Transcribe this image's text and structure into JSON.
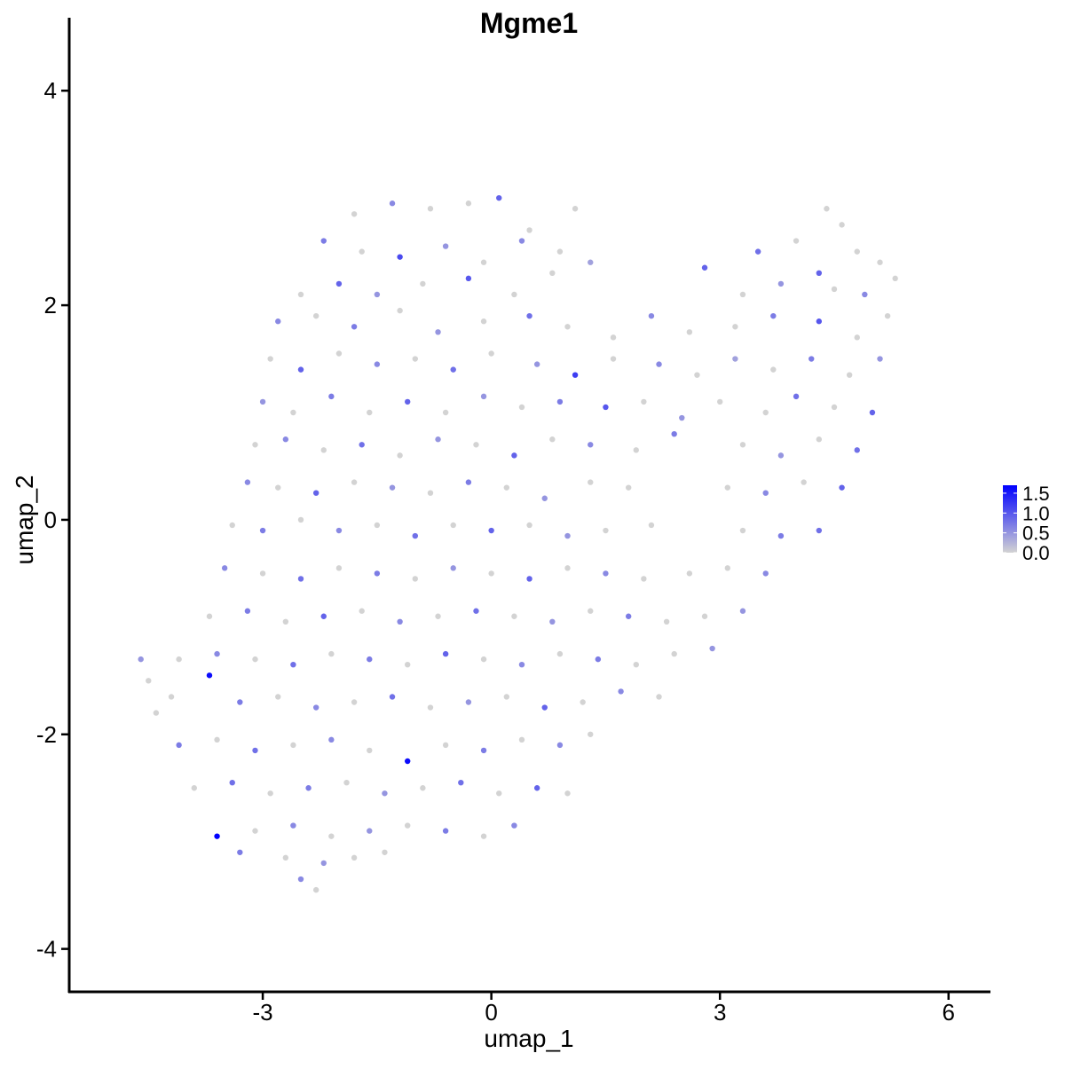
{
  "chart_data": {
    "type": "scatter",
    "title": "Mgme1",
    "xlabel": "umap_1",
    "ylabel": "umap_2",
    "xlim": [
      -5.54,
      6.55
    ],
    "ylim": [
      -4.4,
      4.68
    ],
    "xticks": [
      -3,
      0,
      3,
      6
    ],
    "yticks": [
      -4,
      -2,
      0,
      2,
      4
    ],
    "grid": false,
    "legend": {
      "position": "right",
      "ticks": [
        0.0,
        0.5,
        1.0,
        1.5
      ],
      "tick_labels": [
        "0.0",
        "0.5",
        "1.0",
        "1.5"
      ],
      "min": 0,
      "max": 1.7
    },
    "colors": {
      "low": "#d3d3d3",
      "high": "#0000ff"
    },
    "points_format": [
      "umap_1",
      "umap_2",
      "expression"
    ],
    "points": [
      [
        -1.8,
        2.85,
        0
      ],
      [
        -1.3,
        2.95,
        0.6
      ],
      [
        -0.8,
        2.9,
        0
      ],
      [
        -0.3,
        2.95,
        0
      ],
      [
        0.1,
        3.0,
        0.9
      ],
      [
        0.5,
        2.7,
        0
      ],
      [
        1.1,
        2.9,
        0
      ],
      [
        4.4,
        2.9,
        0
      ],
      [
        4.6,
        2.75,
        0
      ],
      [
        -2.2,
        2.6,
        0.7
      ],
      [
        -1.7,
        2.5,
        0
      ],
      [
        -1.2,
        2.45,
        1.1
      ],
      [
        -0.6,
        2.55,
        0.5
      ],
      [
        -0.1,
        2.4,
        0
      ],
      [
        0.4,
        2.6,
        0.6
      ],
      [
        0.9,
        2.5,
        0
      ],
      [
        1.3,
        2.4,
        0.4
      ],
      [
        3.5,
        2.5,
        0.8
      ],
      [
        4.0,
        2.6,
        0
      ],
      [
        4.3,
        2.3,
        0.9
      ],
      [
        4.8,
        2.5,
        0
      ],
      [
        5.1,
        2.4,
        0
      ],
      [
        -2.5,
        2.1,
        0
      ],
      [
        -2.0,
        2.2,
        0.9
      ],
      [
        -1.5,
        2.1,
        0.5
      ],
      [
        -0.9,
        2.2,
        0
      ],
      [
        -0.3,
        2.25,
        1.0
      ],
      [
        0.3,
        2.1,
        0
      ],
      [
        0.8,
        2.3,
        0
      ],
      [
        2.8,
        2.35,
        0.9
      ],
      [
        3.3,
        2.1,
        0
      ],
      [
        3.8,
        2.2,
        0.5
      ],
      [
        4.5,
        2.15,
        0
      ],
      [
        4.9,
        2.1,
        0.6
      ],
      [
        5.3,
        2.25,
        0
      ],
      [
        -2.8,
        1.85,
        0.6
      ],
      [
        -2.3,
        1.9,
        0
      ],
      [
        -1.8,
        1.8,
        0.7
      ],
      [
        -1.2,
        1.95,
        0
      ],
      [
        -0.7,
        1.75,
        0.5
      ],
      [
        -0.1,
        1.85,
        0
      ],
      [
        0.5,
        1.9,
        0.8
      ],
      [
        1.0,
        1.8,
        0
      ],
      [
        1.6,
        1.7,
        0
      ],
      [
        2.1,
        1.9,
        0.6
      ],
      [
        2.6,
        1.75,
        0
      ],
      [
        3.2,
        1.8,
        0
      ],
      [
        3.7,
        1.9,
        0.7
      ],
      [
        4.3,
        1.85,
        1.0
      ],
      [
        4.8,
        1.7,
        0
      ],
      [
        5.2,
        1.9,
        0
      ],
      [
        -2.9,
        1.5,
        0
      ],
      [
        -2.5,
        1.4,
        0.9
      ],
      [
        -2.0,
        1.55,
        0
      ],
      [
        -1.5,
        1.45,
        0.6
      ],
      [
        -1.0,
        1.5,
        0
      ],
      [
        -0.5,
        1.4,
        0.8
      ],
      [
        0.0,
        1.55,
        0
      ],
      [
        0.6,
        1.45,
        0.5
      ],
      [
        1.1,
        1.35,
        1.2
      ],
      [
        1.6,
        1.5,
        0
      ],
      [
        2.2,
        1.45,
        0.6
      ],
      [
        2.7,
        1.35,
        0
      ],
      [
        3.2,
        1.5,
        0.4
      ],
      [
        3.7,
        1.4,
        0
      ],
      [
        4.2,
        1.5,
        0.7
      ],
      [
        4.7,
        1.35,
        0
      ],
      [
        5.1,
        1.5,
        0.5
      ],
      [
        -3.0,
        1.1,
        0.5
      ],
      [
        -2.6,
        1.0,
        0
      ],
      [
        -2.1,
        1.15,
        0.7
      ],
      [
        -1.6,
        1.0,
        0
      ],
      [
        -1.1,
        1.1,
        0.9
      ],
      [
        -0.6,
        1.0,
        0
      ],
      [
        -0.1,
        1.15,
        0.5
      ],
      [
        0.4,
        1.05,
        0
      ],
      [
        0.9,
        1.1,
        0.7
      ],
      [
        1.5,
        1.05,
        1.0
      ],
      [
        2.0,
        1.1,
        0
      ],
      [
        2.5,
        0.95,
        0.5
      ],
      [
        3.0,
        1.1,
        0
      ],
      [
        3.6,
        1.0,
        0
      ],
      [
        4.0,
        1.15,
        0.8
      ],
      [
        4.5,
        1.05,
        0
      ],
      [
        5.0,
        1.0,
        0.9
      ],
      [
        -3.1,
        0.7,
        0
      ],
      [
        -2.7,
        0.75,
        0.6
      ],
      [
        -2.2,
        0.65,
        0
      ],
      [
        -1.7,
        0.7,
        0.8
      ],
      [
        -1.2,
        0.6,
        0
      ],
      [
        -0.7,
        0.75,
        0.5
      ],
      [
        -0.2,
        0.7,
        0
      ],
      [
        0.3,
        0.6,
        0.9
      ],
      [
        0.8,
        0.75,
        0
      ],
      [
        1.3,
        0.7,
        0.6
      ],
      [
        1.9,
        0.65,
        0
      ],
      [
        2.4,
        0.8,
        0.7
      ],
      [
        3.3,
        0.7,
        0
      ],
      [
        3.8,
        0.6,
        0.5
      ],
      [
        4.3,
        0.75,
        0
      ],
      [
        4.8,
        0.65,
        0.8
      ],
      [
        -3.2,
        0.35,
        0.6
      ],
      [
        -2.8,
        0.3,
        0
      ],
      [
        -2.3,
        0.25,
        0.9
      ],
      [
        -1.8,
        0.35,
        0
      ],
      [
        -1.3,
        0.3,
        0.5
      ],
      [
        -0.8,
        0.25,
        0
      ],
      [
        -0.3,
        0.35,
        0.7
      ],
      [
        0.2,
        0.3,
        0
      ],
      [
        0.7,
        0.2,
        0.5
      ],
      [
        1.3,
        0.35,
        0
      ],
      [
        1.8,
        0.3,
        0
      ],
      [
        3.1,
        0.3,
        0
      ],
      [
        3.6,
        0.25,
        0.6
      ],
      [
        4.1,
        0.35,
        0
      ],
      [
        4.6,
        0.3,
        0.9
      ],
      [
        -3.4,
        -0.05,
        0
      ],
      [
        -3.0,
        -0.1,
        0.7
      ],
      [
        -2.5,
        0.0,
        0
      ],
      [
        -2.0,
        -0.1,
        0.6
      ],
      [
        -1.5,
        -0.05,
        0
      ],
      [
        -1.0,
        -0.15,
        0.8
      ],
      [
        -0.5,
        -0.05,
        0
      ],
      [
        0.0,
        -0.1,
        0.9
      ],
      [
        0.5,
        -0.05,
        0
      ],
      [
        1.0,
        -0.15,
        0.5
      ],
      [
        1.5,
        -0.1,
        0
      ],
      [
        2.1,
        -0.05,
        0
      ],
      [
        3.3,
        -0.1,
        0
      ],
      [
        3.8,
        -0.15,
        0.7
      ],
      [
        4.3,
        -0.1,
        0.8
      ],
      [
        -3.5,
        -0.45,
        0.6
      ],
      [
        -3.0,
        -0.5,
        0
      ],
      [
        -2.5,
        -0.55,
        0.8
      ],
      [
        -2.0,
        -0.45,
        0
      ],
      [
        -1.5,
        -0.5,
        0.7
      ],
      [
        -1.0,
        -0.55,
        0
      ],
      [
        -0.5,
        -0.45,
        0.5
      ],
      [
        0.0,
        -0.5,
        0
      ],
      [
        0.5,
        -0.55,
        0.9
      ],
      [
        1.0,
        -0.45,
        0
      ],
      [
        1.5,
        -0.5,
        0.6
      ],
      [
        2.0,
        -0.55,
        0
      ],
      [
        2.6,
        -0.5,
        0
      ],
      [
        3.1,
        -0.45,
        0
      ],
      [
        3.6,
        -0.5,
        0.6
      ],
      [
        -3.7,
        -0.9,
        0
      ],
      [
        -3.2,
        -0.85,
        0.7
      ],
      [
        -2.7,
        -0.95,
        0
      ],
      [
        -2.2,
        -0.9,
        0.9
      ],
      [
        -1.7,
        -0.85,
        0
      ],
      [
        -1.2,
        -0.95,
        0.6
      ],
      [
        -0.7,
        -0.9,
        0
      ],
      [
        -0.2,
        -0.85,
        0.8
      ],
      [
        0.3,
        -0.9,
        0
      ],
      [
        0.8,
        -0.95,
        0.5
      ],
      [
        1.3,
        -0.85,
        0
      ],
      [
        1.8,
        -0.9,
        0.7
      ],
      [
        2.3,
        -0.95,
        0
      ],
      [
        2.8,
        -0.9,
        0
      ],
      [
        3.3,
        -0.85,
        0.5
      ],
      [
        -4.6,
        -1.3,
        0.5
      ],
      [
        -4.5,
        -1.5,
        0
      ],
      [
        -4.1,
        -1.3,
        0
      ],
      [
        -3.6,
        -1.25,
        0.6
      ],
      [
        -3.1,
        -1.3,
        0
      ],
      [
        -2.6,
        -1.35,
        0.8
      ],
      [
        -2.1,
        -1.25,
        0
      ],
      [
        -1.6,
        -1.3,
        0.7
      ],
      [
        -1.1,
        -1.35,
        0
      ],
      [
        -0.6,
        -1.25,
        0.9
      ],
      [
        -0.1,
        -1.3,
        0
      ],
      [
        0.4,
        -1.35,
        0.6
      ],
      [
        0.9,
        -1.25,
        0
      ],
      [
        1.4,
        -1.3,
        0.7
      ],
      [
        1.9,
        -1.35,
        0
      ],
      [
        2.4,
        -1.25,
        0
      ],
      [
        2.9,
        -1.2,
        0.5
      ],
      [
        -4.4,
        -1.8,
        0
      ],
      [
        -4.2,
        -1.65,
        0
      ],
      [
        -3.7,
        -1.45,
        1.6
      ],
      [
        -3.3,
        -1.7,
        0.7
      ],
      [
        -2.8,
        -1.65,
        0
      ],
      [
        -2.3,
        -1.75,
        0.6
      ],
      [
        -1.8,
        -1.7,
        0
      ],
      [
        -1.3,
        -1.65,
        0.8
      ],
      [
        -0.8,
        -1.75,
        0
      ],
      [
        -0.3,
        -1.7,
        0.5
      ],
      [
        0.2,
        -1.65,
        0
      ],
      [
        0.7,
        -1.75,
        0.9
      ],
      [
        1.2,
        -1.7,
        0
      ],
      [
        1.7,
        -1.6,
        0.6
      ],
      [
        2.2,
        -1.65,
        0
      ],
      [
        -4.1,
        -2.1,
        0.7
      ],
      [
        -3.6,
        -2.05,
        0
      ],
      [
        -3.1,
        -2.15,
        0.8
      ],
      [
        -2.6,
        -2.1,
        0
      ],
      [
        -2.1,
        -2.05,
        0.6
      ],
      [
        -1.6,
        -2.15,
        0
      ],
      [
        -1.1,
        -2.25,
        1.6
      ],
      [
        -0.6,
        -2.1,
        0
      ],
      [
        -0.1,
        -2.15,
        0.7
      ],
      [
        0.4,
        -2.05,
        0
      ],
      [
        0.9,
        -2.1,
        0.6
      ],
      [
        1.3,
        -2.0,
        0
      ],
      [
        -3.9,
        -2.5,
        0
      ],
      [
        -3.4,
        -2.45,
        0.8
      ],
      [
        -2.9,
        -2.55,
        0
      ],
      [
        -2.4,
        -2.5,
        0.7
      ],
      [
        -1.9,
        -2.45,
        0
      ],
      [
        -1.4,
        -2.55,
        0.5
      ],
      [
        -0.9,
        -2.5,
        0
      ],
      [
        -0.4,
        -2.45,
        0.8
      ],
      [
        0.1,
        -2.55,
        0
      ],
      [
        0.6,
        -2.5,
        0.9
      ],
      [
        1.0,
        -2.55,
        0
      ],
      [
        -3.6,
        -2.95,
        1.7
      ],
      [
        -3.1,
        -2.9,
        0
      ],
      [
        -2.6,
        -2.85,
        0.6
      ],
      [
        -2.1,
        -2.95,
        0
      ],
      [
        -1.6,
        -2.9,
        0.5
      ],
      [
        -1.1,
        -2.85,
        0
      ],
      [
        -0.6,
        -2.9,
        0.7
      ],
      [
        -0.1,
        -2.95,
        0
      ],
      [
        0.3,
        -2.85,
        0.6
      ],
      [
        -3.3,
        -3.1,
        0.7
      ],
      [
        -2.7,
        -3.15,
        0
      ],
      [
        -2.2,
        -3.2,
        0.5
      ],
      [
        -1.8,
        -3.15,
        0
      ],
      [
        -1.4,
        -3.1,
        0
      ],
      [
        -2.3,
        -3.45,
        0
      ],
      [
        -2.5,
        -3.35,
        0.6
      ]
    ]
  }
}
